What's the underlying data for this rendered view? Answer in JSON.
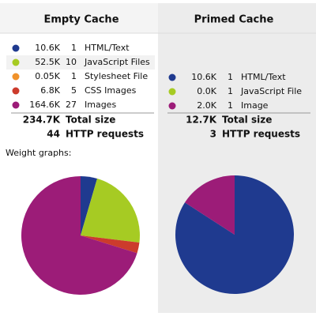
{
  "columns": [
    {
      "title": "Empty Cache",
      "rows": [
        {
          "color": "#1f3a8f",
          "size": {
            "value": 10.6,
            "label": "10.6K"
          },
          "count": 1,
          "type": "HTML/Text"
        },
        {
          "color": "#a6cb23",
          "size": {
            "value": 52.5,
            "label": "52.5K"
          },
          "count": 10,
          "type": "JavaScript Files"
        },
        {
          "color": "#f0922b",
          "size": {
            "value": 0.05,
            "label": "0.05K"
          },
          "count": 1,
          "type": "Stylesheet File"
        },
        {
          "color": "#cc3b2c",
          "size": {
            "value": 6.8,
            "label": "6.8K"
          },
          "count": 5,
          "type": "CSS Images"
        },
        {
          "color": "#9c1c78",
          "size": {
            "value": 164.6,
            "label": "164.6K"
          },
          "count": 27,
          "type": "Images"
        }
      ],
      "total_size": "234.7K",
      "total_label": "Total size",
      "requests": 44,
      "requests_label": "HTTP requests",
      "weight_label": "Weight graphs:"
    },
    {
      "title": "Primed Cache",
      "rows": [
        {
          "color": "#1f3a8f",
          "size": {
            "value": 10.6,
            "label": "10.6K"
          },
          "count": 1,
          "type": "HTML/Text"
        },
        {
          "color": "#a6cb23",
          "size": {
            "value": 0.0,
            "label": "0.0K"
          },
          "count": 1,
          "type": "JavaScript File"
        },
        {
          "color": "#9c1c78",
          "size": {
            "value": 2.0,
            "label": "2.0K"
          },
          "count": 1,
          "type": "Image"
        }
      ],
      "total_size": "12.7K",
      "total_label": "Total size",
      "requests": 3,
      "requests_label": "HTTP requests"
    }
  ]
}
